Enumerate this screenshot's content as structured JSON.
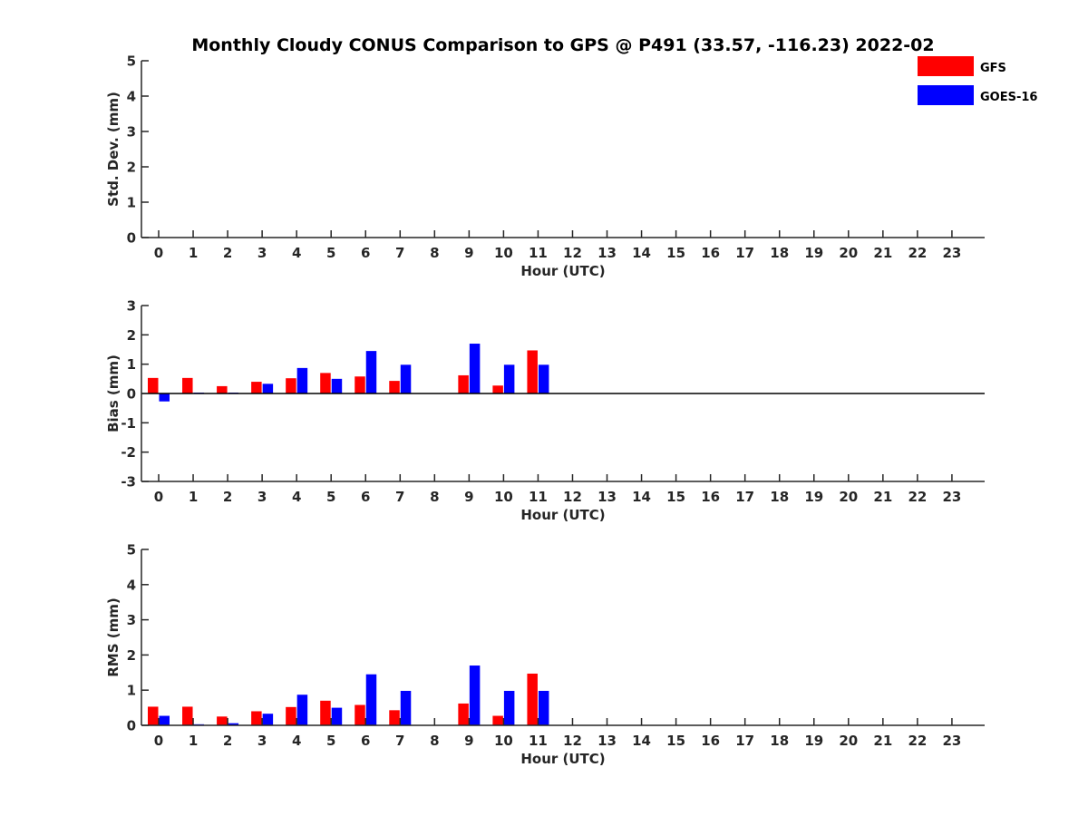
{
  "title": "Monthly Cloudy CONUS Comparison to GPS @ P491 (33.57, -116.23) 2022-02",
  "legend": {
    "placement": "top-right",
    "items": [
      {
        "label": "GFS",
        "color": "#ff0000"
      },
      {
        "label": "GOES-16",
        "color": "#0000ff"
      }
    ]
  },
  "chart_data": [
    {
      "type": "bar",
      "xlabel": "Hour (UTC)",
      "ylabel": "Std. Dev. (mm)",
      "ylim": [
        0,
        5
      ],
      "yticks": [
        0,
        1,
        2,
        3,
        4,
        5
      ],
      "categories": [
        "0",
        "1",
        "2",
        "3",
        "4",
        "5",
        "6",
        "7",
        "8",
        "9",
        "10",
        "11",
        "12",
        "13",
        "14",
        "15",
        "16",
        "17",
        "18",
        "19",
        "20",
        "21",
        "22",
        "23"
      ],
      "series": [
        {
          "name": "GFS",
          "color": "#ff0000",
          "values": [
            null,
            null,
            null,
            null,
            null,
            null,
            null,
            null,
            null,
            null,
            null,
            null,
            null,
            null,
            null,
            null,
            null,
            null,
            null,
            null,
            null,
            null,
            null,
            null
          ]
        },
        {
          "name": "GOES-16",
          "color": "#0000ff",
          "values": [
            null,
            null,
            null,
            null,
            null,
            null,
            null,
            null,
            null,
            null,
            null,
            null,
            null,
            null,
            null,
            null,
            null,
            null,
            null,
            null,
            null,
            null,
            null,
            null
          ]
        }
      ]
    },
    {
      "type": "bar",
      "xlabel": "Hour (UTC)",
      "ylabel": "Bias (mm)",
      "ylim": [
        -3,
        3
      ],
      "yticks": [
        -3,
        -2,
        -1,
        0,
        1,
        2,
        3
      ],
      "zero_line": true,
      "categories": [
        "0",
        "1",
        "2",
        "3",
        "4",
        "5",
        "6",
        "7",
        "8",
        "9",
        "10",
        "11",
        "12",
        "13",
        "14",
        "15",
        "16",
        "17",
        "18",
        "19",
        "20",
        "21",
        "22",
        "23"
      ],
      "series": [
        {
          "name": "GFS",
          "color": "#ff0000",
          "values": [
            0.53,
            0.53,
            0.25,
            0.4,
            0.52,
            0.7,
            0.58,
            0.43,
            null,
            0.62,
            0.27,
            1.47,
            null,
            null,
            null,
            null,
            null,
            null,
            null,
            null,
            null,
            null,
            null,
            null
          ]
        },
        {
          "name": "GOES-16",
          "color": "#0000ff",
          "values": [
            -0.27,
            0.03,
            0.03,
            0.33,
            0.87,
            0.5,
            1.45,
            0.98,
            null,
            1.7,
            0.98,
            0.98,
            null,
            null,
            null,
            null,
            null,
            null,
            null,
            null,
            null,
            null,
            null,
            null
          ]
        }
      ]
    },
    {
      "type": "bar",
      "xlabel": "Hour (UTC)",
      "ylabel": "RMS (mm)",
      "ylim": [
        0,
        5
      ],
      "yticks": [
        0,
        1,
        2,
        3,
        4,
        5
      ],
      "categories": [
        "0",
        "1",
        "2",
        "3",
        "4",
        "5",
        "6",
        "7",
        "8",
        "9",
        "10",
        "11",
        "12",
        "13",
        "14",
        "15",
        "16",
        "17",
        "18",
        "19",
        "20",
        "21",
        "22",
        "23"
      ],
      "series": [
        {
          "name": "GFS",
          "color": "#ff0000",
          "values": [
            0.53,
            0.53,
            0.25,
            0.4,
            0.52,
            0.7,
            0.58,
            0.43,
            null,
            0.62,
            0.27,
            1.47,
            null,
            null,
            null,
            null,
            null,
            null,
            null,
            null,
            null,
            null,
            null,
            null
          ]
        },
        {
          "name": "GOES-16",
          "color": "#0000ff",
          "values": [
            0.27,
            0.03,
            0.06,
            0.33,
            0.87,
            0.5,
            1.45,
            0.98,
            null,
            1.7,
            0.98,
            0.98,
            null,
            null,
            null,
            null,
            null,
            null,
            null,
            null,
            null,
            null,
            null,
            null
          ]
        }
      ]
    }
  ]
}
